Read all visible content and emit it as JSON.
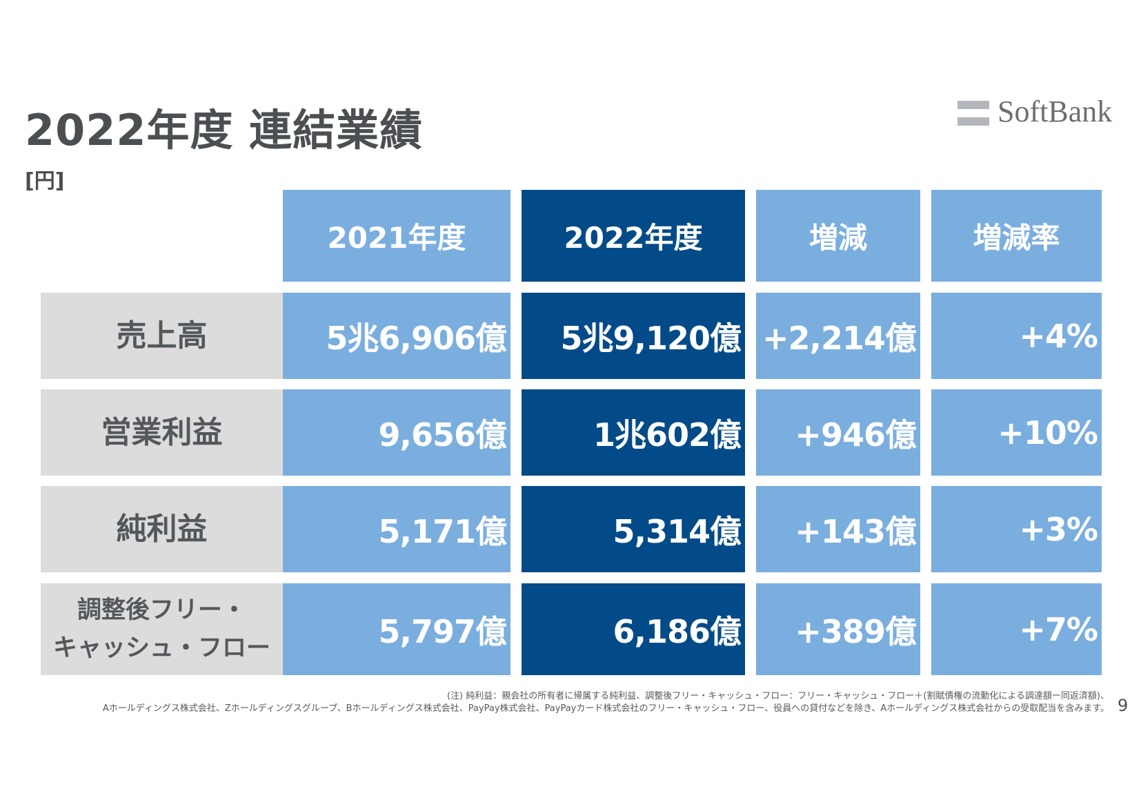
{
  "header": {
    "title": "2022年度 連結業績",
    "unit": "[円]",
    "logo_text": "SoftBank"
  },
  "table": {
    "columns": [
      "2021年度",
      "2022年度",
      "増減",
      "増減率"
    ],
    "rows": [
      {
        "label": "売上高",
        "values": [
          "5兆6,906億",
          "5兆9,120億",
          "+2,214億",
          "+4%"
        ]
      },
      {
        "label": "営業利益",
        "values": [
          "9,656億",
          "1兆602億",
          "+946億",
          "+10%"
        ]
      },
      {
        "label": "純利益",
        "values": [
          "5,171億",
          "5,314億",
          "+143億",
          "+3%"
        ]
      },
      {
        "label_line1": "調整後フリー・",
        "label_line2": "キャッシュ・フロー",
        "values": [
          "5,797億",
          "6,186億",
          "+389億",
          "+7%"
        ]
      }
    ]
  },
  "footnote": {
    "line1": "(注) 純利益：親会社の所有者に帰属する純利益、調整後フリー・キャッシュ・フロー：フリー・キャッシュ・フロー＋(割賦債権の流動化による調達額ー同返済額)、",
    "line2": "Aホールディングス株式会社、Zホールディングスグループ、Bホールディングス株式会社、PayPay株式会社、PayPayカード株式会社のフリー・キャッシュ・フロー、役員への貸付などを除き、Aホールディングス株式会社からの受取配当を含みます。"
  },
  "page_number": "9",
  "colors": {
    "light_blue": "#7aaedf",
    "dark_blue": "#034b88",
    "label_gray": "#dcdcdc",
    "text_gray": "#4b4f52"
  }
}
